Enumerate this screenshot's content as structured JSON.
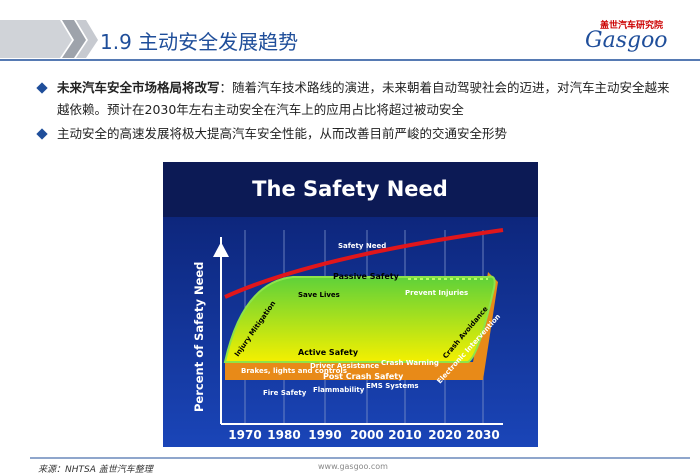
{
  "header": {
    "title": "1.9 主动安全发展趋势",
    "brand": "盖世汽车研究院",
    "logo": "Gasgoo"
  },
  "bullets": [
    {
      "bold": "未来汽车安全市场格局将改写",
      "text": "：随着汽车技术路线的演进，未来朝着自动驾驶社会的迈进，对汽车主动安全越来越依赖。预计在2030年左右主动安全在汽车上的应用占比将超过被动安全"
    },
    {
      "text": "主动安全的高速发展将极大提高汽车安全性能，从而改善目前严峻的交通安全形势"
    }
  ],
  "figure": {
    "title": "The Safety Need",
    "y_label": "Percent of Safety Need",
    "years": [
      "1970",
      "1980",
      "1990",
      "2000",
      "2010",
      "2020",
      "2030"
    ],
    "labels": {
      "safety_need": "Safety Need",
      "passive": "Passive Safety",
      "save_lives": "Save Lives",
      "prevent_injuries": "Prevent Injuries",
      "injury_mitigation": "Injury Mitigation",
      "active": "Active Safety",
      "driver_assistance": "Driver Assistance",
      "crash_warning": "Crash Warning",
      "crash_avoidance": "Crash Avoidance",
      "brakes": "Brakes, lights and controls",
      "post_crash": "Post Crash Safety",
      "fire": "Fire Safety",
      "flammability": "Flammability",
      "ems": "EMS Systems",
      "electronic": "Electronic Intervention"
    }
  },
  "footer": {
    "source": "来源：NHTSA  盖世汽车整理",
    "url": "www.gasgoo.com"
  }
}
